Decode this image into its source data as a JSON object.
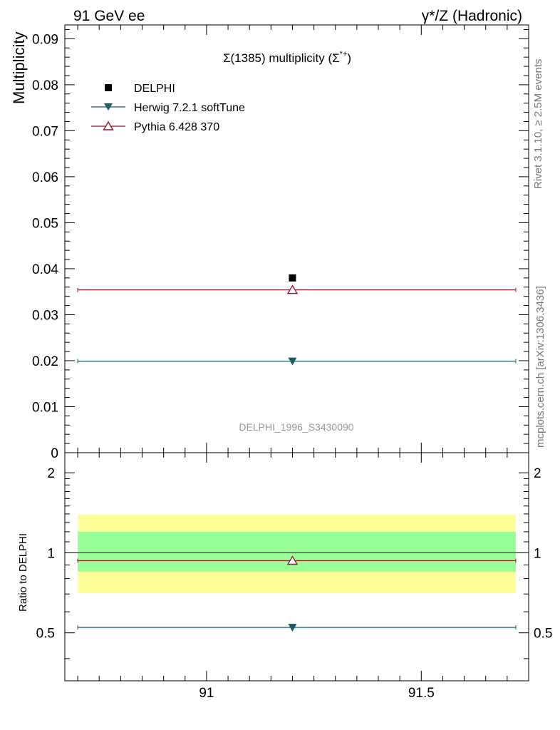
{
  "header": {
    "left": "91 GeV ee",
    "right": "γ*/Z (Hadronic)"
  },
  "side_labels": {
    "rivet": "Rivet 3.1.10, ≥ 2.5M events",
    "mcplots": "mcplots.cern.ch [arXiv:1306.3436]"
  },
  "chart_data": {
    "type": "scatter",
    "title_main": "Σ(1385) multiplicity (Σ",
    "title_sup": "*+",
    "title_end": ")",
    "watermark": "DELPHI_1996_S3430090",
    "xlim": [
      90.67,
      91.75
    ],
    "x_ticks": [
      {
        "value": 91,
        "label": "91"
      },
      {
        "value": 91.5,
        "label": "91.5"
      }
    ],
    "top": {
      "ylabel": "Multiplicity",
      "ylim": [
        0,
        0.093
      ],
      "y_ticks": [
        {
          "value": 0,
          "label": "0"
        },
        {
          "value": 0.01,
          "label": "0.01"
        },
        {
          "value": 0.02,
          "label": "0.02"
        },
        {
          "value": 0.03,
          "label": "0.03"
        },
        {
          "value": 0.04,
          "label": "0.04"
        },
        {
          "value": 0.05,
          "label": "0.05"
        },
        {
          "value": 0.06,
          "label": "0.06"
        },
        {
          "value": 0.07,
          "label": "0.07"
        },
        {
          "value": 0.08,
          "label": "0.08"
        },
        {
          "value": 0.09,
          "label": "0.09"
        }
      ]
    },
    "ratio": {
      "ylabel": "Ratio to DELPHI",
      "ylim": [
        0.33,
        2.38
      ],
      "y_ticks": [
        {
          "value": 0.5,
          "label": "0.5"
        },
        {
          "value": 1,
          "label": "1"
        },
        {
          "value": 2,
          "label": "2"
        }
      ],
      "band_inner": [
        0.85,
        1.2
      ],
      "band_outer": [
        0.705,
        1.395
      ],
      "band_colors": {
        "inner": "#99ff99",
        "outer": "#ffff99"
      }
    },
    "series": [
      {
        "name": "DELPHI",
        "kind": "data",
        "marker": "square",
        "color": "#000000",
        "x": 91.2,
        "y": 0.038,
        "ratio": 1.0
      },
      {
        "name": "Herwig 7.2.1 softTune",
        "kind": "mc",
        "marker": "triangle-down-filled",
        "color": "#1b5b66",
        "x": 91.2,
        "y": 0.0199,
        "ratio": 0.524,
        "x_range": [
          90.7,
          91.72
        ]
      },
      {
        "name": "Pythia 6.428 370",
        "kind": "mc",
        "marker": "triangle-up-open",
        "color": "#99192e",
        "x": 91.2,
        "y": 0.0354,
        "ratio": 0.934,
        "x_range": [
          90.7,
          91.72
        ]
      }
    ]
  }
}
